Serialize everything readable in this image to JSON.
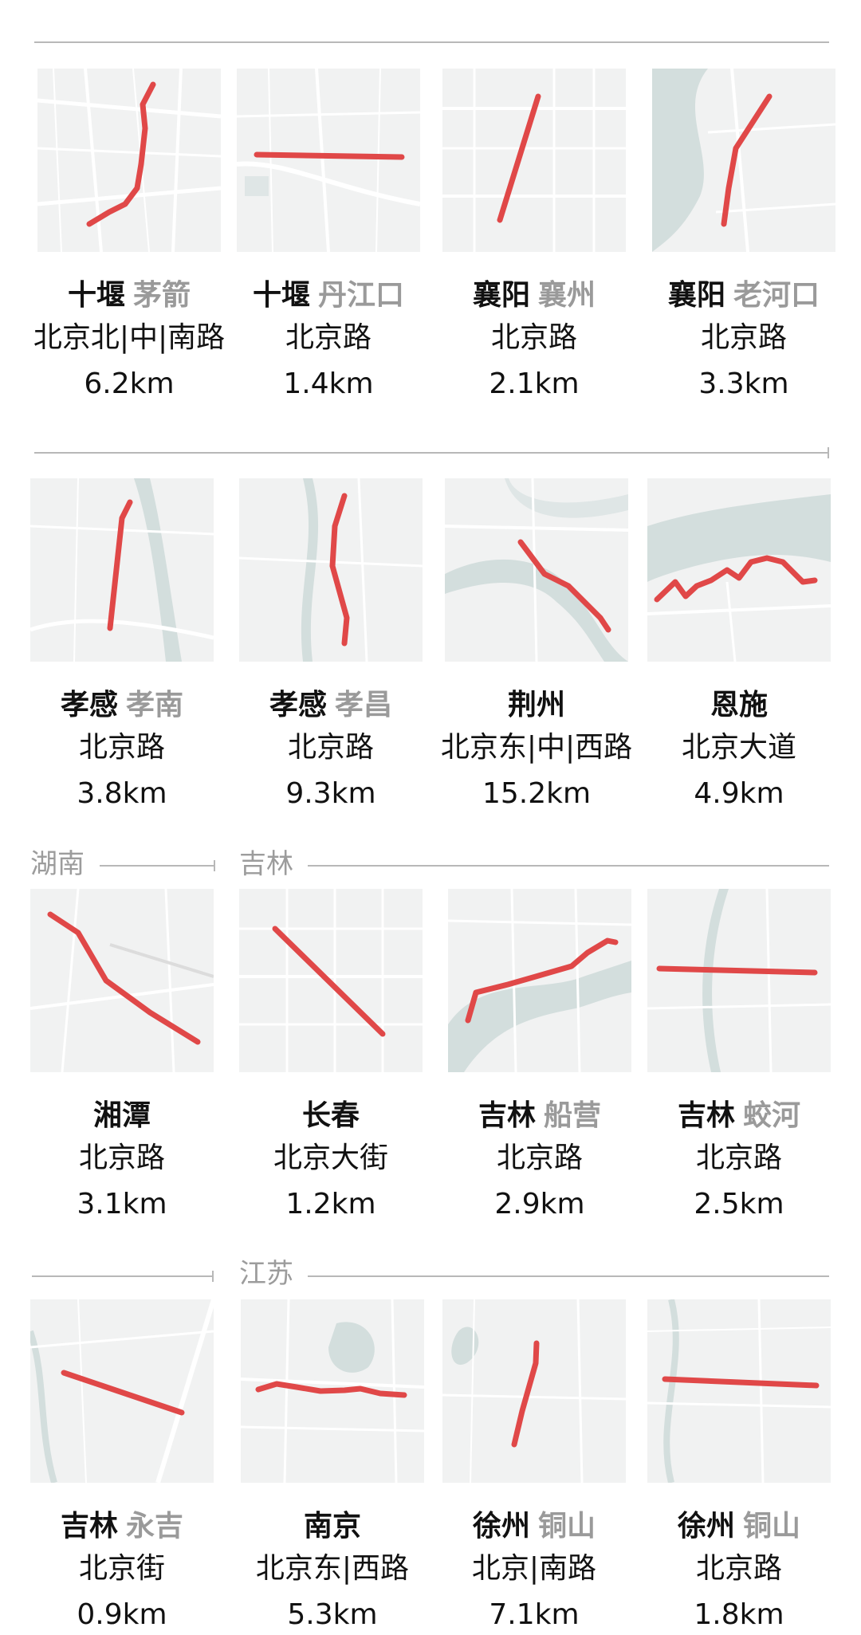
{
  "accent_color": "#e04848",
  "regions": {
    "hunan": "湖南",
    "jilin": "吉林",
    "jiangsu": "江苏"
  },
  "roads": [
    {
      "city": "十堰",
      "district": "茅箭",
      "road": "北京北|中|南路",
      "distance": "6.2km"
    },
    {
      "city": "十堰",
      "district": "丹江口",
      "road": "北京路",
      "distance": "1.4km"
    },
    {
      "city": "襄阳",
      "district": "襄州",
      "road": "北京路",
      "distance": "2.1km"
    },
    {
      "city": "襄阳",
      "district": "老河口",
      "road": "北京路",
      "distance": "3.3km"
    },
    {
      "city": "孝感",
      "district": "孝南",
      "road": "北京路",
      "distance": "3.8km"
    },
    {
      "city": "孝感",
      "district": "孝昌",
      "road": "北京路",
      "distance": "9.3km"
    },
    {
      "city": "荆州",
      "district": "",
      "road": "北京东|中|西路",
      "distance": "15.2km"
    },
    {
      "city": "恩施",
      "district": "",
      "road": "北京大道",
      "distance": "4.9km"
    },
    {
      "city": "湘潭",
      "district": "",
      "road": "北京路",
      "distance": "3.1km"
    },
    {
      "city": "长春",
      "district": "",
      "road": "北京大街",
      "distance": "1.2km"
    },
    {
      "city": "吉林",
      "district": "船营",
      "road": "北京路",
      "distance": "2.9km"
    },
    {
      "city": "吉林",
      "district": "蛟河",
      "road": "北京路",
      "distance": "2.5km"
    },
    {
      "city": "吉林",
      "district": "永吉",
      "road": "北京街",
      "distance": "0.9km"
    },
    {
      "city": "南京",
      "district": "",
      "road": "北京东|西路",
      "distance": "5.3km"
    },
    {
      "city": "徐州",
      "district": "铜山",
      "road": "北京|南路",
      "distance": "7.1km"
    },
    {
      "city": "徐州",
      "district": "铜山",
      "road": "北京路",
      "distance": "1.8km"
    }
  ]
}
